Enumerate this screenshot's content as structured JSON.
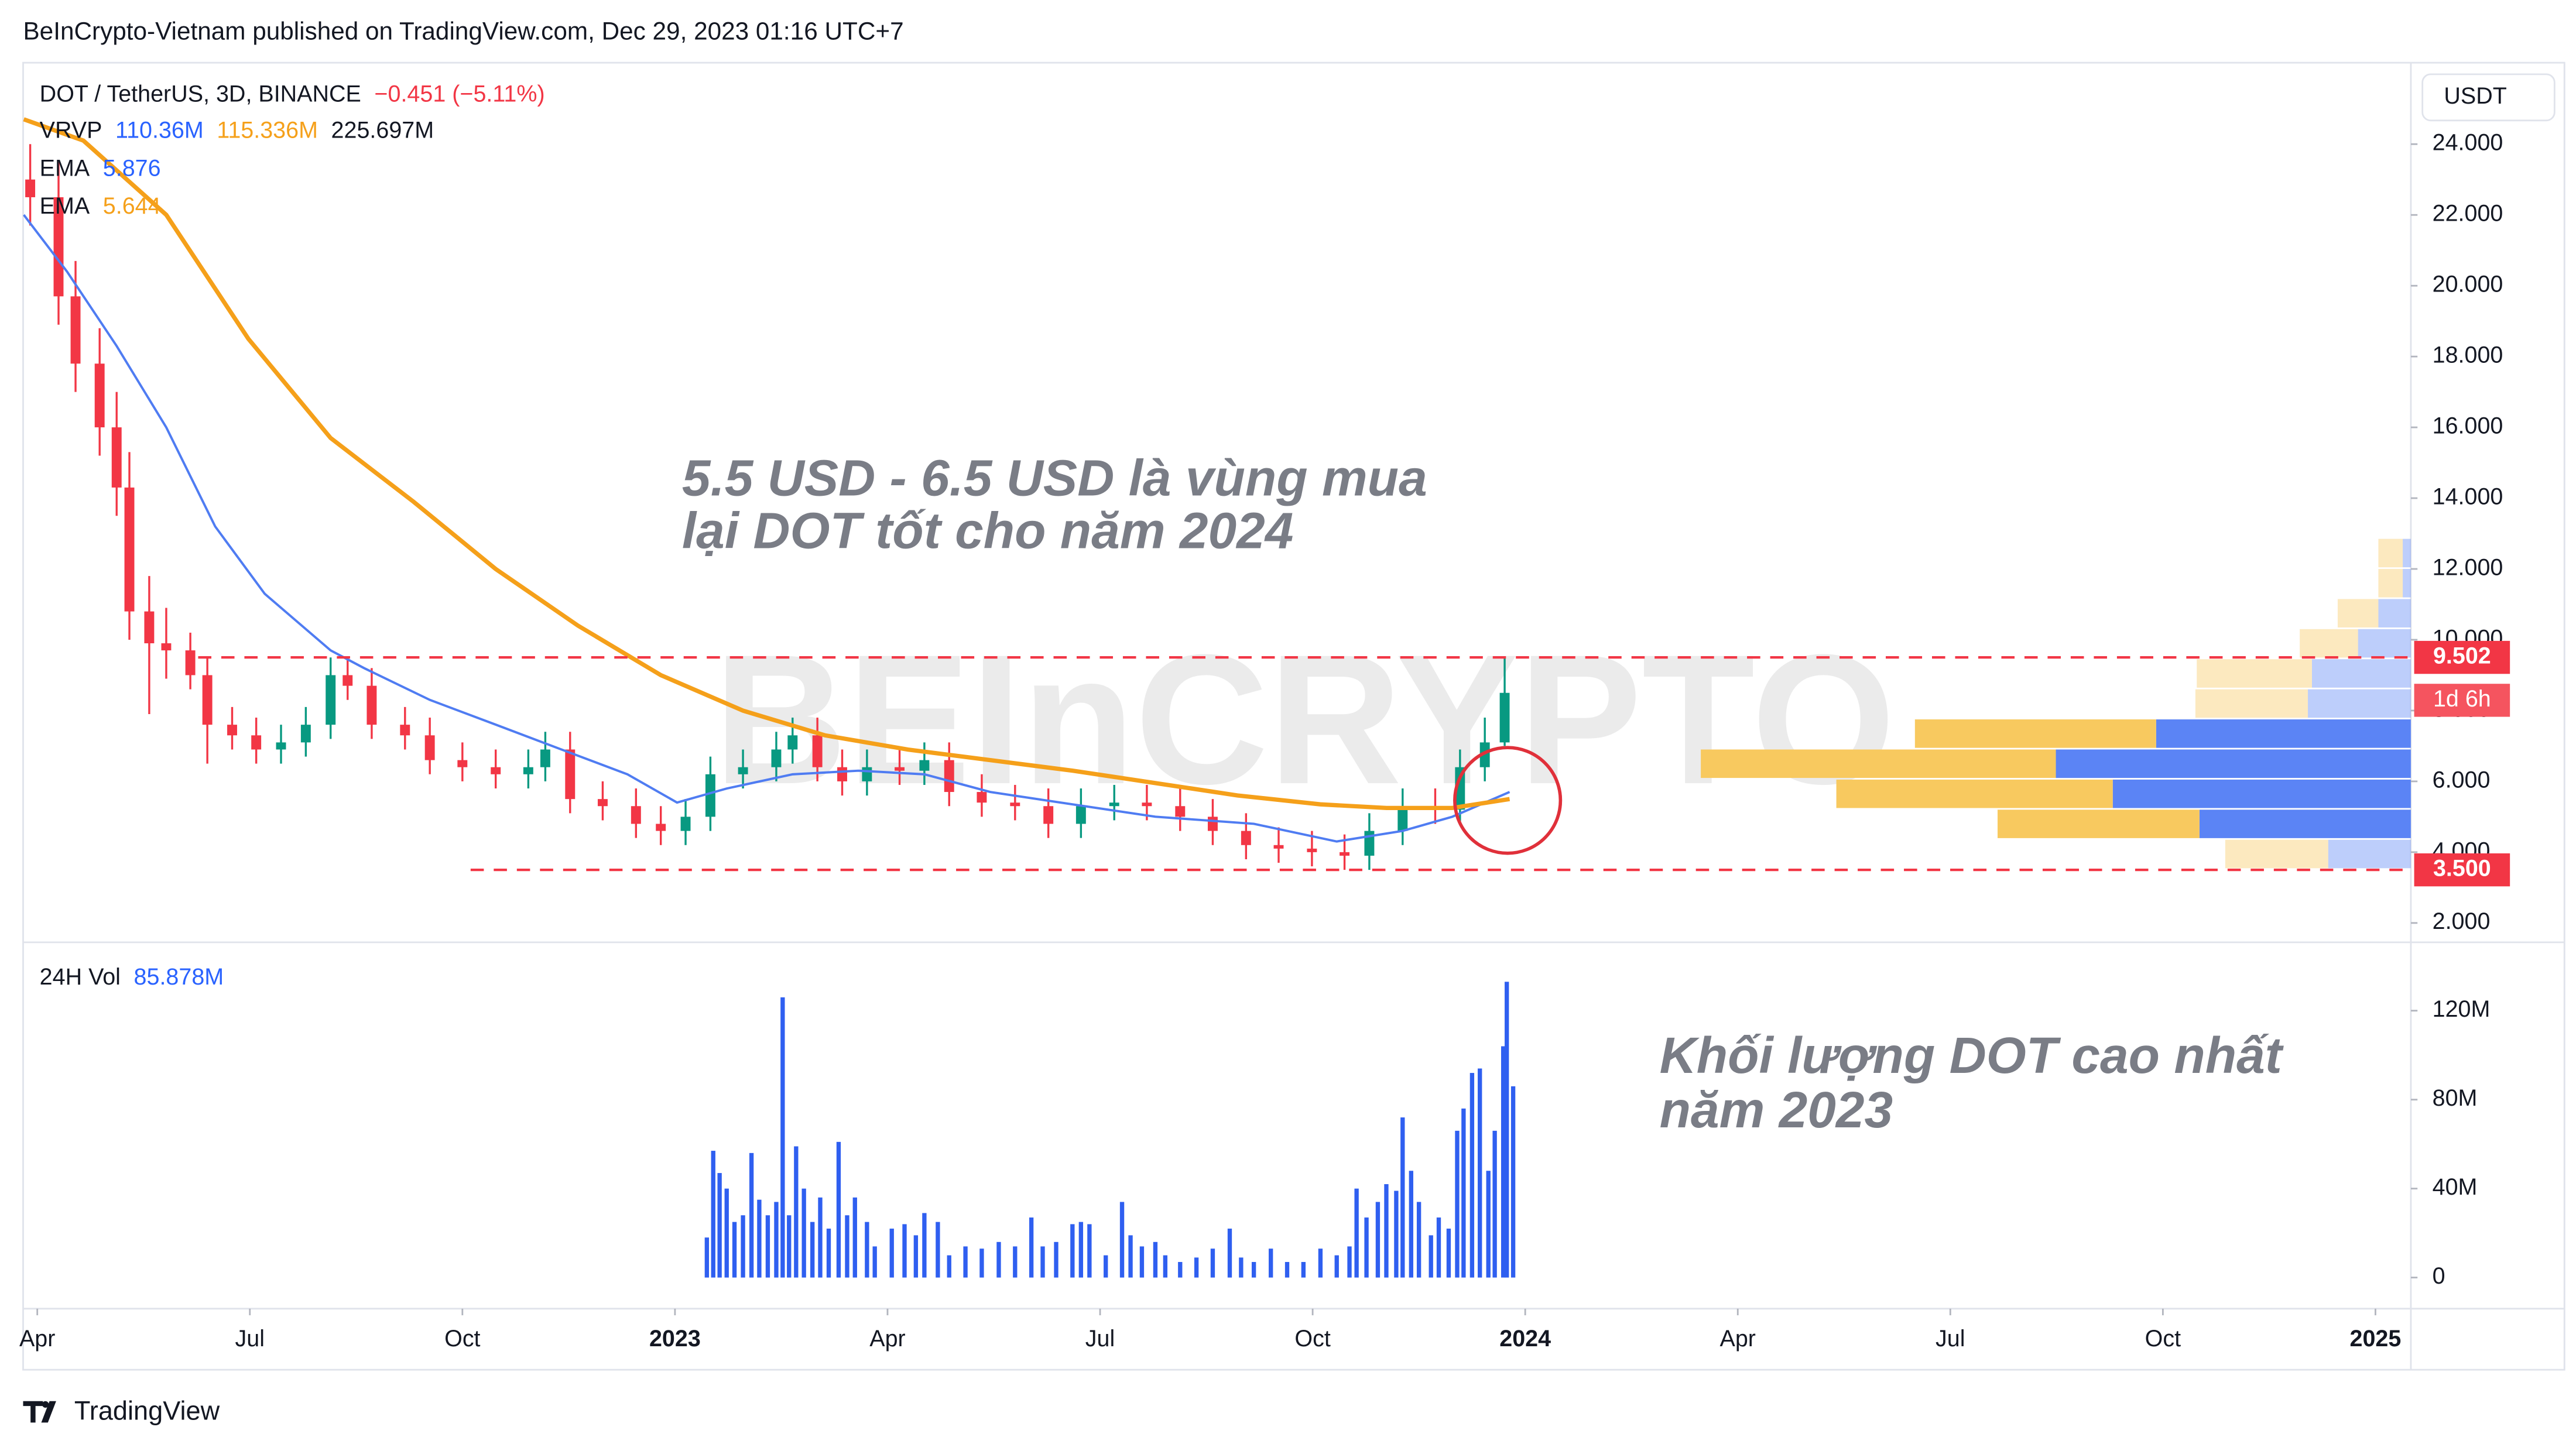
{
  "header": "BeInCrypto-Vietnam published on TradingView.com, Dec 29, 2023 01:16 UTC+7",
  "footer": "TradingView",
  "chart_data": [
    {
      "type": "candlestick",
      "title": "DOT / TetherUS, 3D, BINANCE",
      "change": "−0.451 (−5.11%)",
      "currency": "USDT",
      "watermark": "BEInCRYPTO",
      "vrvp": {
        "label": "VRVP",
        "up": "110.36M",
        "down": "115.336M",
        "total": "225.697M"
      },
      "up_color": "#089981",
      "down_color": "#f23645",
      "xlim": [
        2.8,
        36.5
      ],
      "ylim": [
        1.5,
        26.3
      ],
      "yticks": [
        {
          "value": 24,
          "label": "24.000"
        },
        {
          "value": 22,
          "label": "22.000"
        },
        {
          "value": 20,
          "label": "20.000"
        },
        {
          "value": 18,
          "label": "18.000"
        },
        {
          "value": 16,
          "label": "16.000"
        },
        {
          "value": 14,
          "label": "14.000"
        },
        {
          "value": 12,
          "label": "12.000"
        },
        {
          "value": 10,
          "label": "10.000"
        },
        {
          "value": 8,
          "label": "8.000"
        },
        {
          "value": 6,
          "label": "6.000"
        },
        {
          "value": 4,
          "label": "4.000"
        },
        {
          "value": 2,
          "label": "2.000"
        }
      ],
      "x": [
        2.9,
        3.3,
        3.54,
        3.88,
        4.12,
        4.3,
        4.58,
        4.82,
        5.16,
        5.4,
        5.75,
        6.09,
        6.44,
        6.79,
        7.14,
        7.38,
        7.72,
        8.19,
        8.54,
        9.0,
        9.47,
        9.93,
        10.17,
        10.52,
        10.98,
        11.45,
        11.8,
        12.15,
        12.5,
        12.96,
        13.43,
        13.66,
        14.01,
        14.36,
        14.71,
        15.17,
        15.52,
        15.87,
        16.33,
        16.8,
        17.27,
        17.73,
        18.2,
        18.66,
        19.13,
        19.59,
        20.06,
        20.52,
        20.99,
        21.45,
        21.8,
        22.27,
        22.73,
        23.08,
        23.43,
        23.71
      ],
      "open": [
        23.0,
        22.5,
        19.7,
        17.8,
        16.0,
        14.3,
        10.8,
        9.9,
        9.7,
        9.0,
        7.6,
        7.3,
        6.9,
        7.1,
        7.6,
        9.0,
        8.7,
        7.6,
        7.3,
        6.6,
        6.4,
        6.2,
        6.4,
        6.9,
        5.5,
        5.3,
        4.8,
        4.6,
        5.0,
        6.2,
        6.4,
        6.9,
        7.3,
        6.4,
        6.0,
        6.4,
        6.3,
        6.6,
        5.7,
        5.4,
        5.3,
        4.8,
        5.3,
        5.4,
        5.3,
        5.0,
        4.6,
        4.2,
        4.1,
        4.0,
        3.9,
        4.6,
        5.3,
        5.2,
        6.4,
        7.1
      ],
      "high": [
        24.0,
        23.5,
        20.7,
        18.8,
        17.0,
        15.3,
        11.8,
        10.9,
        10.2,
        9.5,
        8.1,
        7.8,
        7.6,
        8.1,
        9.5,
        9.5,
        9.2,
        8.1,
        7.8,
        7.1,
        6.9,
        6.9,
        7.4,
        7.4,
        6.0,
        5.8,
        5.3,
        5.5,
        6.7,
        6.9,
        7.4,
        7.8,
        7.8,
        6.9,
        6.9,
        6.9,
        7.1,
        7.1,
        6.2,
        5.9,
        5.8,
        5.8,
        5.9,
        5.9,
        5.8,
        5.5,
        5.1,
        4.7,
        4.6,
        4.5,
        5.1,
        5.8,
        5.8,
        6.9,
        7.8,
        9.5
      ],
      "low": [
        21.7,
        18.9,
        17.0,
        15.2,
        13.5,
        10.0,
        7.9,
        8.9,
        8.6,
        6.5,
        6.9,
        6.5,
        6.5,
        6.7,
        7.2,
        8.3,
        7.2,
        6.9,
        6.2,
        6.0,
        5.8,
        5.8,
        6.0,
        5.1,
        4.9,
        4.4,
        4.2,
        4.2,
        4.6,
        5.8,
        6.0,
        6.5,
        6.0,
        5.6,
        5.6,
        5.9,
        5.9,
        5.3,
        5.0,
        4.9,
        4.4,
        4.4,
        4.9,
        4.9,
        4.6,
        4.2,
        3.8,
        3.7,
        3.6,
        3.5,
        3.5,
        4.2,
        4.8,
        4.8,
        6.0,
        7.0
      ],
      "close": [
        22.5,
        19.7,
        17.8,
        16.0,
        14.3,
        10.8,
        9.9,
        9.7,
        9.0,
        7.6,
        7.3,
        6.9,
        7.1,
        7.6,
        9.0,
        8.7,
        7.6,
        7.3,
        6.6,
        6.4,
        6.2,
        6.4,
        6.9,
        5.5,
        5.3,
        4.8,
        4.6,
        5.0,
        6.2,
        6.4,
        6.9,
        7.3,
        6.4,
        6.0,
        6.4,
        6.3,
        6.6,
        5.7,
        5.4,
        5.3,
        4.8,
        5.3,
        5.4,
        5.3,
        5.0,
        4.6,
        4.2,
        4.1,
        4.0,
        3.9,
        4.6,
        5.3,
        5.2,
        6.4,
        7.1,
        8.5
      ],
      "series": [
        {
          "name": "EMA",
          "last": 5.876,
          "color": "#4f7cf2",
          "x": [
            2.81,
            3.42,
            4.12,
            4.82,
            5.51,
            6.21,
            7.14,
            7.61,
            8.54,
            9.47,
            10.4,
            11.33,
            12.03,
            12.73,
            13.66,
            14.59,
            15.52,
            16.45,
            17.61,
            18.78,
            20.17,
            21.34,
            22.27,
            22.97,
            23.78
          ],
          "values": [
            22.0,
            20.4,
            18.3,
            16.0,
            13.2,
            11.3,
            9.7,
            9.2,
            8.3,
            7.6,
            6.9,
            6.2,
            5.4,
            5.8,
            6.2,
            6.3,
            6.2,
            5.7,
            5.35,
            5.0,
            4.8,
            4.3,
            4.6,
            5.0,
            5.7
          ]
        },
        {
          "name": "EMA",
          "last": 5.644,
          "color": "#f5a01a",
          "x": [
            2.81,
            3.65,
            4.82,
            5.98,
            7.14,
            8.31,
            9.47,
            10.63,
            11.8,
            12.96,
            14.12,
            15.29,
            16.45,
            17.61,
            18.78,
            19.94,
            21.11,
            22.04,
            22.97,
            23.78
          ],
          "values": [
            24.7,
            24.1,
            22.0,
            18.5,
            15.7,
            13.9,
            12.0,
            10.4,
            9.0,
            8.0,
            7.3,
            6.9,
            6.6,
            6.3,
            5.95,
            5.6,
            5.35,
            5.25,
            5.25,
            5.5
          ]
        }
      ],
      "hlines": [
        {
          "value": 9.502,
          "label": "9.502"
        },
        {
          "value": 3.5,
          "label": "3.500"
        }
      ],
      "hline_color": "#f23645",
      "countdown": "1d 6h",
      "volume_profile": {
        "bins": [
          3.5,
          4.35,
          5.2,
          6.05,
          6.9,
          7.75,
          8.6,
          9.45,
          10.3,
          11.15,
          12.0,
          12.85
        ],
        "up": [
          6.1,
          15.6,
          22.0,
          26.2,
          18.8,
          7.6,
          7.3,
          3.9,
          2.4,
          0.6,
          0.6
        ],
        "down": [
          7.6,
          14.9,
          20.4,
          26.2,
          17.8,
          8.3,
          8.5,
          4.3,
          3.0,
          1.8,
          1.8
        ],
        "up_color": "#5b84f5",
        "down_color": "#f8c95f",
        "value_area": [
          4.35,
          7.75
        ]
      },
      "annotation": [
        "5.5 USD - 6.5 USD là vùng mua",
        "lại DOT tốt cho năm 2024"
      ]
    },
    {
      "type": "bar",
      "title": "24H Vol",
      "last": "85.878M",
      "color": "#2f5ff0",
      "xlim": [
        2.8,
        36.5
      ],
      "xticks": [
        {
          "value": 3,
          "label": "Apr"
        },
        {
          "value": 6,
          "label": "Jul"
        },
        {
          "value": 9,
          "label": "Oct"
        },
        {
          "value": 12,
          "label": "2023"
        },
        {
          "value": 15,
          "label": "Apr"
        },
        {
          "value": 18,
          "label": "Jul"
        },
        {
          "value": 21,
          "label": "Oct"
        },
        {
          "value": 24,
          "label": "2024"
        },
        {
          "value": 27,
          "label": "Apr"
        },
        {
          "value": 30,
          "label": "Jul"
        },
        {
          "value": 33,
          "label": "Oct"
        },
        {
          "value": 36,
          "label": "2025"
        }
      ],
      "ylim": [
        -14,
        150
      ],
      "yticks": [
        0,
        {
          "value": 40,
          "label": "40M"
        },
        {
          "value": 80,
          "label": "80M"
        },
        {
          "value": 120,
          "label": "120M"
        }
      ],
      "x": [
        12.45,
        12.54,
        12.63,
        12.73,
        12.84,
        12.96,
        13.08,
        13.19,
        13.31,
        13.43,
        13.52,
        13.61,
        13.71,
        13.82,
        13.94,
        14.05,
        14.17,
        14.31,
        14.43,
        14.54,
        14.71,
        14.82,
        15.06,
        15.24,
        15.4,
        15.52,
        15.71,
        15.87,
        16.1,
        16.33,
        16.57,
        16.8,
        17.03,
        17.19,
        17.38,
        17.61,
        17.73,
        17.85,
        18.08,
        18.31,
        18.43,
        18.59,
        18.78,
        18.92,
        19.13,
        19.36,
        19.59,
        19.83,
        19.99,
        20.17,
        20.41,
        20.64,
        20.87,
        21.11,
        21.34,
        21.52,
        21.62,
        21.76,
        21.92,
        22.04,
        22.18,
        22.27,
        22.39,
        22.5,
        22.67,
        22.78,
        22.92,
        23.04,
        23.13,
        23.25,
        23.36,
        23.48,
        23.57,
        23.69,
        23.74,
        23.83
      ],
      "values": [
        18,
        57,
        47,
        40,
        25,
        28,
        56,
        35,
        28,
        34,
        126,
        28,
        59,
        40,
        25,
        36,
        22,
        61,
        28,
        36,
        25,
        14,
        22,
        24,
        19,
        29,
        25,
        10,
        14,
        13,
        16,
        14,
        27,
        14,
        16,
        24,
        25,
        24,
        10,
        34,
        19,
        14,
        16,
        10,
        7,
        9,
        13,
        22,
        9,
        7,
        13,
        7,
        7,
        13,
        10,
        14,
        40,
        27,
        34,
        42,
        39,
        72,
        48,
        34,
        19,
        27,
        22,
        66,
        76,
        92,
        94,
        48,
        66,
        104,
        133,
        86
      ],
      "annotation": [
        "Khối lượng DOT cao nhất",
        "năm 2023"
      ]
    }
  ]
}
